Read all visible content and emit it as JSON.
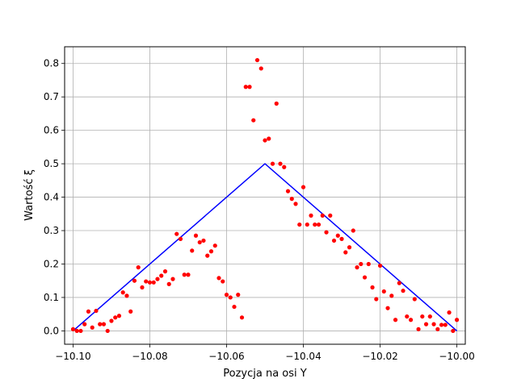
{
  "chart_data": {
    "type": "scatter",
    "title": "",
    "xlabel": "Pozycja na osi Y",
    "ylabel": "Wartość ξ",
    "xlim": [
      -10.1022,
      -9.9978
    ],
    "ylim": [
      -0.04,
      0.85
    ],
    "grid": true,
    "x_ticks": [
      {
        "value": -10.1,
        "label": "−10.10"
      },
      {
        "value": -10.08,
        "label": "−10.08"
      },
      {
        "value": -10.06,
        "label": "−10.06"
      },
      {
        "value": -10.04,
        "label": "−10.04"
      },
      {
        "value": -10.02,
        "label": "−10.02"
      },
      {
        "value": -10.0,
        "label": "−10.00"
      }
    ],
    "y_ticks": [
      {
        "value": 0.0,
        "label": "0.0"
      },
      {
        "value": 0.1,
        "label": "0.1"
      },
      {
        "value": 0.2,
        "label": "0.2"
      },
      {
        "value": 0.3,
        "label": "0.3"
      },
      {
        "value": 0.4,
        "label": "0.4"
      },
      {
        "value": 0.5,
        "label": "0.5"
      },
      {
        "value": 0.6,
        "label": "0.6"
      },
      {
        "value": 0.7,
        "label": "0.7"
      },
      {
        "value": 0.8,
        "label": "0.8"
      }
    ],
    "series": [
      {
        "kind": "scatter",
        "color": "#ff0000",
        "points": [
          [
            -10.1,
            0.005
          ],
          [
            -10.099,
            0.0
          ],
          [
            -10.098,
            0.0
          ],
          [
            -10.097,
            0.02
          ],
          [
            -10.096,
            0.058
          ],
          [
            -10.095,
            0.01
          ],
          [
            -10.094,
            0.06
          ],
          [
            -10.093,
            0.02
          ],
          [
            -10.092,
            0.02
          ],
          [
            -10.091,
            0.0
          ],
          [
            -10.09,
            0.03
          ],
          [
            -10.089,
            0.04
          ],
          [
            -10.088,
            0.045
          ],
          [
            -10.087,
            0.115
          ],
          [
            -10.086,
            0.105
          ],
          [
            -10.085,
            0.058
          ],
          [
            -10.084,
            0.15
          ],
          [
            -10.083,
            0.19
          ],
          [
            -10.082,
            0.13
          ],
          [
            -10.081,
            0.148
          ],
          [
            -10.08,
            0.145
          ],
          [
            -10.079,
            0.145
          ],
          [
            -10.078,
            0.155
          ],
          [
            -10.077,
            0.165
          ],
          [
            -10.076,
            0.178
          ],
          [
            -10.075,
            0.14
          ],
          [
            -10.074,
            0.155
          ],
          [
            -10.073,
            0.29
          ],
          [
            -10.072,
            0.275
          ],
          [
            -10.071,
            0.168
          ],
          [
            -10.07,
            0.168
          ],
          [
            -10.069,
            0.24
          ],
          [
            -10.068,
            0.285
          ],
          [
            -10.067,
            0.265
          ],
          [
            -10.066,
            0.27
          ],
          [
            -10.065,
            0.225
          ],
          [
            -10.064,
            0.238
          ],
          [
            -10.063,
            0.255
          ],
          [
            -10.062,
            0.158
          ],
          [
            -10.061,
            0.148
          ],
          [
            -10.06,
            0.108
          ],
          [
            -10.059,
            0.1
          ],
          [
            -10.058,
            0.072
          ],
          [
            -10.057,
            0.108
          ],
          [
            -10.056,
            0.04
          ],
          [
            -10.055,
            0.73
          ],
          [
            -10.054,
            0.73
          ],
          [
            -10.053,
            0.63
          ],
          [
            -10.052,
            0.81
          ],
          [
            -10.051,
            0.785
          ],
          [
            -10.05,
            0.57
          ],
          [
            -10.049,
            0.575
          ],
          [
            -10.048,
            0.5
          ],
          [
            -10.047,
            0.68
          ],
          [
            -10.046,
            0.5
          ],
          [
            -10.045,
            0.49
          ],
          [
            -10.044,
            0.418
          ],
          [
            -10.043,
            0.395
          ],
          [
            -10.042,
            0.38
          ],
          [
            -10.041,
            0.318
          ],
          [
            -10.04,
            0.43
          ],
          [
            -10.039,
            0.318
          ],
          [
            -10.038,
            0.345
          ],
          [
            -10.037,
            0.318
          ],
          [
            -10.036,
            0.318
          ],
          [
            -10.035,
            0.345
          ],
          [
            -10.034,
            0.295
          ],
          [
            -10.033,
            0.345
          ],
          [
            -10.032,
            0.27
          ],
          [
            -10.031,
            0.285
          ],
          [
            -10.03,
            0.275
          ],
          [
            -10.029,
            0.235
          ],
          [
            -10.028,
            0.25
          ],
          [
            -10.027,
            0.3
          ],
          [
            -10.026,
            0.19
          ],
          [
            -10.025,
            0.2
          ],
          [
            -10.024,
            0.16
          ],
          [
            -10.023,
            0.2
          ],
          [
            -10.022,
            0.13
          ],
          [
            -10.021,
            0.095
          ],
          [
            -10.02,
            0.195
          ],
          [
            -10.019,
            0.118
          ],
          [
            -10.018,
            0.068
          ],
          [
            -10.017,
            0.105
          ],
          [
            -10.016,
            0.033
          ],
          [
            -10.015,
            0.143
          ],
          [
            -10.014,
            0.12
          ],
          [
            -10.013,
            0.043
          ],
          [
            -10.012,
            0.033
          ],
          [
            -10.011,
            0.095
          ],
          [
            -10.01,
            0.005
          ],
          [
            -10.009,
            0.043
          ],
          [
            -10.008,
            0.02
          ],
          [
            -10.007,
            0.043
          ],
          [
            -10.006,
            0.02
          ],
          [
            -10.005,
            0.005
          ],
          [
            -10.004,
            0.018
          ],
          [
            -10.003,
            0.018
          ],
          [
            -10.002,
            0.055
          ],
          [
            -10.001,
            0.0
          ],
          [
            -10.0,
            0.033
          ]
        ]
      },
      {
        "kind": "line",
        "color": "#0000ff",
        "points": [
          [
            -10.1,
            0.0
          ],
          [
            -10.05,
            0.5
          ],
          [
            -10.0,
            0.0
          ]
        ]
      }
    ]
  }
}
